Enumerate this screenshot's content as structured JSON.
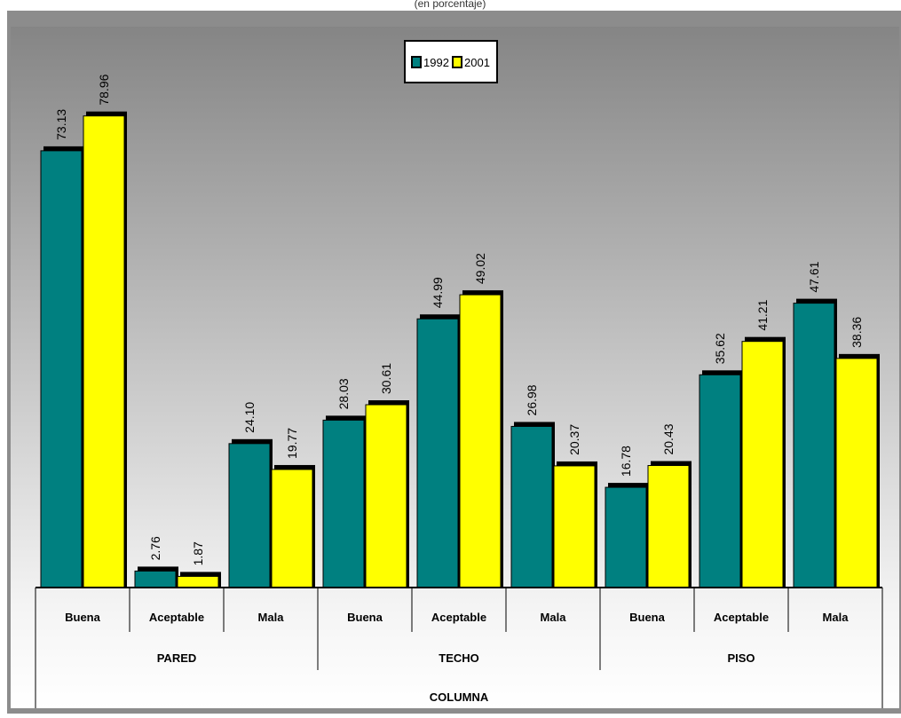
{
  "chart_data": {
    "type": "bar",
    "title": "(en porcentaje)",
    "levels": {
      "top": "COLUMNA",
      "groups": [
        "PARED",
        "TECHO",
        "PISO"
      ]
    },
    "categories": [
      {
        "label": "Buena",
        "group": "PARED"
      },
      {
        "label": "Aceptable",
        "group": "PARED"
      },
      {
        "label": "Mala",
        "group": "PARED"
      },
      {
        "label": "Buena",
        "group": "TECHO"
      },
      {
        "label": "Aceptable",
        "group": "TECHO"
      },
      {
        "label": "Mala",
        "group": "TECHO"
      },
      {
        "label": "Buena",
        "group": "PISO"
      },
      {
        "label": "Aceptable",
        "group": "PISO"
      },
      {
        "label": "Mala",
        "group": "PISO"
      }
    ],
    "series": [
      {
        "name": "1992",
        "color": "#008080",
        "values": [
          73.13,
          2.76,
          24.1,
          28.03,
          44.99,
          26.98,
          16.78,
          35.62,
          47.61
        ],
        "labels": [
          "73.13",
          "2.76",
          "24.10",
          "28.03",
          "44.99",
          "26.98",
          "16.78",
          "35.62",
          "47.61"
        ]
      },
      {
        "name": "2001",
        "color": "#ffff00",
        "values": [
          78.96,
          1.87,
          19.77,
          30.61,
          49.02,
          20.37,
          20.43,
          41.21,
          38.36
        ],
        "labels": [
          "78.96",
          "1.87",
          "19.77",
          "30.61",
          "49.02",
          "20.37",
          "20.43",
          "41.21",
          "38.36"
        ]
      }
    ],
    "ylim": [
      0,
      85
    ],
    "legend": "top-center",
    "background": "gradient-gray"
  }
}
